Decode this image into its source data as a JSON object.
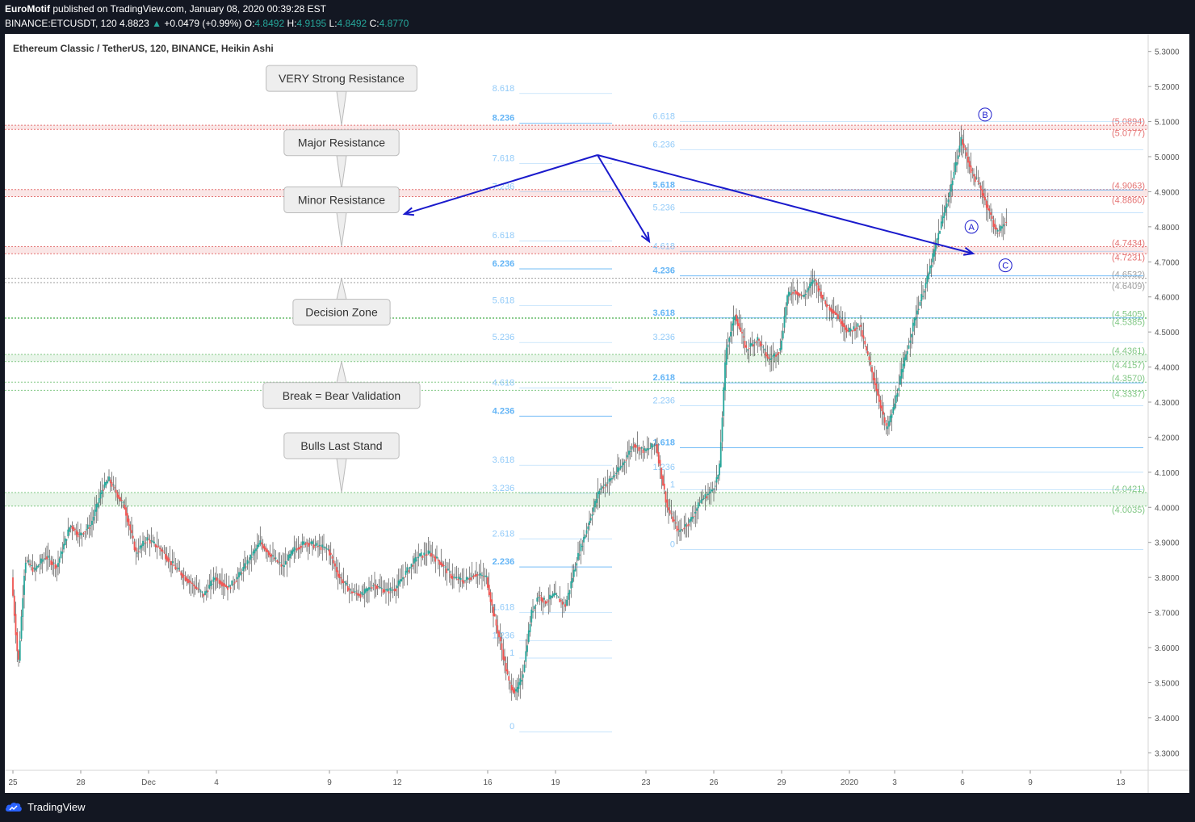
{
  "header": {
    "publisher": "EuroMotif",
    "published_text": "published on TradingView.com, January 08, 2020 00:39:28 EST",
    "symbol_line": "BINANCE:ETCUSDT, 120",
    "last": "4.8823",
    "change": "+0.0479 (+0.99%)",
    "o_label": "O:",
    "o": "4.8492",
    "h_label": "H:",
    "h": "4.9195",
    "l_label": "L:",
    "l": "4.8492",
    "c_label": "C:",
    "c": "4.8770"
  },
  "chart_title": "Ethereum Classic / TetherUS, 120, BINANCE, Heikin Ashi",
  "footer": {
    "brand": "TradingView"
  },
  "colors": {
    "up": "#26a69a",
    "down": "#ef5350",
    "arrow": "#1a1acc",
    "fib": "#64b5f6",
    "resistance": "#e57373",
    "support": "#81c784",
    "neutral": "#9e9e9e"
  },
  "chart_data": {
    "type": "candlestick",
    "style": "Heikin Ashi",
    "y_axis": {
      "ylim": [
        3.25,
        5.35
      ],
      "ticks": [
        "5.3000",
        "5.2000",
        "5.1000",
        "5.0000",
        "4.9000",
        "4.8000",
        "4.7000",
        "4.6000",
        "4.5000",
        "4.4000",
        "4.3000",
        "4.2000",
        "4.1000",
        "4.0000",
        "3.9000",
        "3.8000",
        "3.7000",
        "3.6000",
        "3.5000",
        "3.4000",
        "3.3000"
      ]
    },
    "x_axis": {
      "ticks": [
        {
          "label": "25",
          "pos": 0
        },
        {
          "label": "28",
          "pos": 3
        },
        {
          "label": "Dec",
          "pos": 6
        },
        {
          "label": "4",
          "pos": 9
        },
        {
          "label": "9",
          "pos": 14
        },
        {
          "label": "12",
          "pos": 17
        },
        {
          "label": "16",
          "pos": 21
        },
        {
          "label": "19",
          "pos": 24
        },
        {
          "label": "23",
          "pos": 28
        },
        {
          "label": "26",
          "pos": 31
        },
        {
          "label": "29",
          "pos": 34
        },
        {
          "label": "2020",
          "pos": 37
        },
        {
          "label": "3",
          "pos": 39
        },
        {
          "label": "6",
          "pos": 42
        },
        {
          "label": "9",
          "pos": 45
        },
        {
          "label": "13",
          "pos": 49
        }
      ]
    },
    "price_path": [
      [
        0,
        3.8
      ],
      [
        0.3,
        3.55
      ],
      [
        0.6,
        3.85
      ],
      [
        1,
        3.82
      ],
      [
        1.5,
        3.86
      ],
      [
        2,
        3.83
      ],
      [
        2.6,
        3.95
      ],
      [
        3,
        3.92
      ],
      [
        3.5,
        3.95
      ],
      [
        4,
        4.05
      ],
      [
        4.3,
        4.08
      ],
      [
        5,
        4.0
      ],
      [
        5.5,
        3.87
      ],
      [
        6,
        3.91
      ],
      [
        6.6,
        3.88
      ],
      [
        7.2,
        3.83
      ],
      [
        8,
        3.78
      ],
      [
        8.5,
        3.75
      ],
      [
        9,
        3.8
      ],
      [
        9.6,
        3.77
      ],
      [
        10,
        3.8
      ],
      [
        10.5,
        3.85
      ],
      [
        11,
        3.9
      ],
      [
        11.5,
        3.86
      ],
      [
        12,
        3.83
      ],
      [
        12.5,
        3.88
      ],
      [
        13,
        3.9
      ],
      [
        14,
        3.88
      ],
      [
        14.5,
        3.8
      ],
      [
        15,
        3.76
      ],
      [
        15.5,
        3.75
      ],
      [
        16,
        3.78
      ],
      [
        16.6,
        3.76
      ],
      [
        17,
        3.77
      ],
      [
        17.5,
        3.82
      ],
      [
        18,
        3.86
      ],
      [
        18.5,
        3.87
      ],
      [
        19,
        3.84
      ],
      [
        19.5,
        3.8
      ],
      [
        20,
        3.79
      ],
      [
        20.5,
        3.81
      ],
      [
        21,
        3.8
      ],
      [
        21.3,
        3.7
      ],
      [
        21.6,
        3.62
      ],
      [
        22,
        3.5
      ],
      [
        22.3,
        3.47
      ],
      [
        22.6,
        3.52
      ],
      [
        23,
        3.7
      ],
      [
        23.3,
        3.75
      ],
      [
        23.6,
        3.73
      ],
      [
        24,
        3.75
      ],
      [
        24.5,
        3.72
      ],
      [
        25,
        3.85
      ],
      [
        25.5,
        3.95
      ],
      [
        26,
        4.05
      ],
      [
        26.5,
        4.08
      ],
      [
        27,
        4.12
      ],
      [
        27.5,
        4.18
      ],
      [
        28,
        4.16
      ],
      [
        28.5,
        4.18
      ],
      [
        29,
        4.0
      ],
      [
        29.5,
        3.93
      ],
      [
        30,
        3.96
      ],
      [
        30.5,
        4.02
      ],
      [
        31,
        4.05
      ],
      [
        31.3,
        4.1
      ],
      [
        31.6,
        4.45
      ],
      [
        32,
        4.55
      ],
      [
        32.5,
        4.45
      ],
      [
        33,
        4.48
      ],
      [
        33.5,
        4.42
      ],
      [
        34,
        4.45
      ],
      [
        34.3,
        4.6
      ],
      [
        34.6,
        4.62
      ],
      [
        35,
        4.6
      ],
      [
        35.5,
        4.65
      ],
      [
        36,
        4.58
      ],
      [
        36.5,
        4.55
      ],
      [
        37,
        4.5
      ],
      [
        37.5,
        4.52
      ],
      [
        38,
        4.4
      ],
      [
        38.4,
        4.3
      ],
      [
        38.7,
        4.22
      ],
      [
        39,
        4.28
      ],
      [
        39.5,
        4.42
      ],
      [
        40,
        4.55
      ],
      [
        40.5,
        4.65
      ],
      [
        41,
        4.78
      ],
      [
        41.5,
        4.9
      ],
      [
        42,
        5.05
      ],
      [
        42.5,
        4.95
      ],
      [
        42.8,
        4.92
      ],
      [
        43.2,
        4.85
      ],
      [
        43.6,
        4.78
      ],
      [
        44,
        4.82
      ]
    ],
    "horizontal_levels": [
      {
        "label": "(5.0894)",
        "value": 5.0894,
        "kind": "resistance"
      },
      {
        "label": "(5.0777)",
        "value": 5.0777,
        "kind": "resistance"
      },
      {
        "label": "(4.9063)",
        "value": 4.9063,
        "kind": "resistance"
      },
      {
        "label": "(4.8860)",
        "value": 4.886,
        "kind": "resistance"
      },
      {
        "label": "(4.7434)",
        "value": 4.7434,
        "kind": "resistance"
      },
      {
        "label": "(4.7231)",
        "value": 4.7231,
        "kind": "resistance"
      },
      {
        "label": "(4.6532)",
        "value": 4.6532,
        "kind": "neutral"
      },
      {
        "label": "(4.6409)",
        "value": 4.6409,
        "kind": "neutral"
      },
      {
        "label": "(4.5405)",
        "value": 4.5405,
        "kind": "support"
      },
      {
        "label": "(4.5385)",
        "value": 4.5385,
        "kind": "support"
      },
      {
        "label": "(4.4361)",
        "value": 4.4361,
        "kind": "support"
      },
      {
        "label": "(4.4157)",
        "value": 4.4157,
        "kind": "support"
      },
      {
        "label": "(4.3570)",
        "value": 4.357,
        "kind": "support"
      },
      {
        "label": "(4.3337)",
        "value": 4.3337,
        "kind": "support"
      },
      {
        "label": "(4.0421)",
        "value": 4.0421,
        "kind": "support"
      },
      {
        "label": "(4.0035)",
        "value": 4.0035,
        "kind": "support"
      }
    ],
    "fib_set_1": {
      "x_range": [
        22.4,
        26.5
      ],
      "levels": [
        {
          "label": "8.618",
          "value": 5.18,
          "bold": false
        },
        {
          "label": "8.236",
          "value": 5.095,
          "bold": true
        },
        {
          "label": "7.618",
          "value": 4.98,
          "bold": false
        },
        {
          "label": "7.236",
          "value": 4.9,
          "bold": false
        },
        {
          "label": "6.618",
          "value": 4.76,
          "bold": false
        },
        {
          "label": "6.236",
          "value": 4.68,
          "bold": true
        },
        {
          "label": "5.618",
          "value": 4.575,
          "bold": false
        },
        {
          "label": "5.236",
          "value": 4.47,
          "bold": false
        },
        {
          "label": "4.618",
          "value": 4.34,
          "bold": false
        },
        {
          "label": "4.236",
          "value": 4.26,
          "bold": true
        },
        {
          "label": "3.618",
          "value": 4.12,
          "bold": false
        },
        {
          "label": "3.236",
          "value": 4.04,
          "bold": false
        },
        {
          "label": "2.618",
          "value": 3.91,
          "bold": false
        },
        {
          "label": "2.236",
          "value": 3.83,
          "bold": true
        },
        {
          "label": "1.618",
          "value": 3.7,
          "bold": false
        },
        {
          "label": "1.236",
          "value": 3.62,
          "bold": false
        },
        {
          "label": "1",
          "value": 3.57,
          "bold": false
        },
        {
          "label": "0",
          "value": 3.36,
          "bold": false
        }
      ]
    },
    "fib_set_2": {
      "x_range": [
        29.5,
        50
      ],
      "levels": [
        {
          "label": "6.618",
          "value": 5.1,
          "bold": false
        },
        {
          "label": "6.236",
          "value": 5.02,
          "bold": false
        },
        {
          "label": "5.618",
          "value": 4.905,
          "bold": true
        },
        {
          "label": "5.236",
          "value": 4.84,
          "bold": false
        },
        {
          "label": "4.618",
          "value": 4.73,
          "bold": false
        },
        {
          "label": "4.236",
          "value": 4.66,
          "bold": true
        },
        {
          "label": "3.618",
          "value": 4.54,
          "bold": true
        },
        {
          "label": "3.236",
          "value": 4.47,
          "bold": false
        },
        {
          "label": "2.618",
          "value": 4.355,
          "bold": true
        },
        {
          "label": "2.236",
          "value": 4.29,
          "bold": false
        },
        {
          "label": "1.618",
          "value": 4.17,
          "bold": true
        },
        {
          "label": "1.236",
          "value": 4.1,
          "bold": false
        },
        {
          "label": "1",
          "value": 4.05,
          "bold": false
        },
        {
          "label": "0",
          "value": 3.88,
          "bold": false
        }
      ]
    },
    "callouts": [
      {
        "text": "VERY Strong Resistance",
        "value": 5.0894,
        "point": "down"
      },
      {
        "text": "Major Resistance",
        "value": 4.9063,
        "point": "down"
      },
      {
        "text": "Minor Resistance",
        "value": 4.7434,
        "point": "down"
      },
      {
        "text": "Decision Zone",
        "value": 4.6532,
        "point": "up"
      },
      {
        "text": "Break = Bear Validation",
        "value": 4.4157,
        "point": "up"
      },
      {
        "text": "Bulls Last Stand",
        "value": 4.0421,
        "point": "down"
      }
    ],
    "wave_labels": [
      {
        "text": "A",
        "x": 42.4,
        "value": 4.8
      },
      {
        "text": "B",
        "x": 43.0,
        "value": 5.12
      },
      {
        "text": "C",
        "x": 43.9,
        "value": 4.69
      }
    ]
  }
}
